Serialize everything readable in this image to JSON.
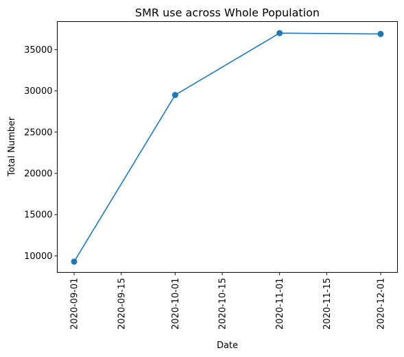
{
  "chart_data": {
    "type": "line",
    "title": "SMR use across Whole Population",
    "xlabel": "Date",
    "ylabel": "Total Number",
    "x_ticks": [
      "2020-09-01",
      "2020-09-15",
      "2020-10-01",
      "2020-10-15",
      "2020-11-01",
      "2020-11-15",
      "2020-12-01"
    ],
    "y_ticks": [
      10000,
      15000,
      20000,
      25000,
      30000,
      35000
    ],
    "xlim": [
      "2020-08-27",
      "2020-12-06"
    ],
    "ylim": [
      8000,
      38400
    ],
    "grid": false,
    "series": [
      {
        "x": [
          "2020-09-01",
          "2020-10-01",
          "2020-11-01",
          "2020-12-01"
        ],
        "values": [
          9300,
          29500,
          37000,
          36900
        ],
        "color": "#1f77b4",
        "marker": "circle"
      }
    ]
  }
}
